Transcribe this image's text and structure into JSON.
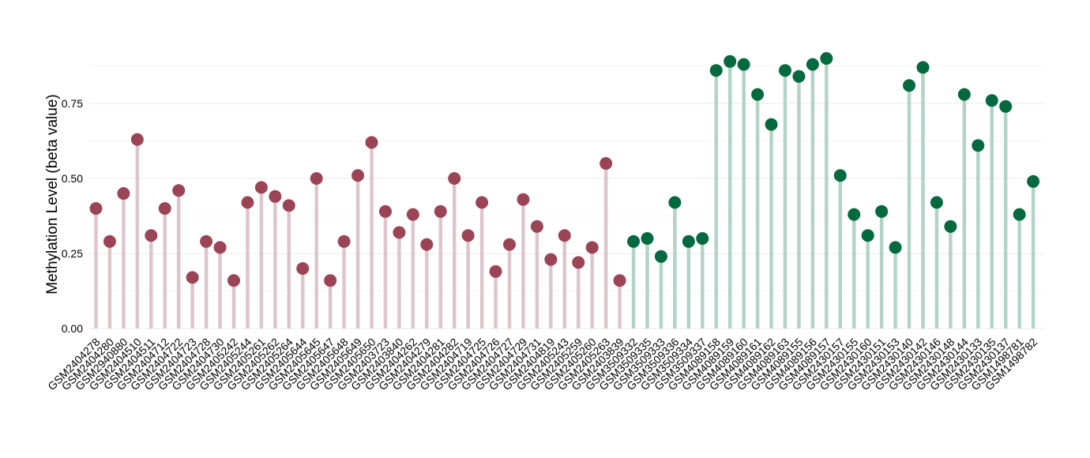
{
  "chart_data": {
    "type": "lollipop",
    "title": "",
    "xlabel": "",
    "ylabel": "Methylation Level (beta value)",
    "ylim": [
      0,
      0.95
    ],
    "yticks": [
      "0.00",
      "0.25",
      "0.50",
      "0.75"
    ],
    "ytick_values": [
      0,
      0.25,
      0.5,
      0.75
    ],
    "grid": true,
    "legend": "none",
    "colors": {
      "group1_point": "#9B4456",
      "group1_stem": "#DDC5CB",
      "group2_point": "#04693F",
      "group2_stem": "#B3D3C7",
      "grid": "#EBEBEB"
    },
    "series": [
      {
        "group": "group1",
        "categories": [
          "GSM2404278",
          "GSM2404280",
          "GSM2940880",
          "GSM2404510",
          "GSM2404511",
          "GSM2404712",
          "GSM2404722",
          "GSM2404723",
          "GSM2404728",
          "GSM2404730",
          "GSM2405242",
          "GSM2405244",
          "GSM2405261",
          "GSM2405262",
          "GSM2405264",
          "GSM2405644",
          "GSM2405645",
          "GSM2405647",
          "GSM2405648",
          "GSM2405649",
          "GSM2405650",
          "GSM2403723",
          "GSM2403840",
          "GSM2404262",
          "GSM2404279",
          "GSM2404281",
          "GSM2404282",
          "GSM2404719",
          "GSM2404725",
          "GSM2404726",
          "GSM2404727",
          "GSM2404729",
          "GSM2404731",
          "GSM2404819",
          "GSM2405243",
          "GSM2405259",
          "GSM2405260",
          "GSM2405263",
          "GSM2403839"
        ],
        "values": [
          0.4,
          0.29,
          0.45,
          0.63,
          0.31,
          0.4,
          0.46,
          0.17,
          0.29,
          0.27,
          0.16,
          0.42,
          0.47,
          0.44,
          0.41,
          0.2,
          0.5,
          0.16,
          0.29,
          0.51,
          0.62,
          0.39,
          0.32,
          0.38,
          0.28,
          0.39,
          0.5,
          0.31,
          0.42,
          0.19,
          0.28,
          0.43,
          0.34,
          0.23,
          0.31,
          0.22,
          0.27,
          0.55,
          0.16
        ]
      },
      {
        "group": "group2",
        "categories": [
          "GSM3509332",
          "GSM3509335",
          "GSM3509333",
          "GSM3509336",
          "GSM3509334",
          "GSM3509337",
          "GSM4089158",
          "GSM4089159",
          "GSM4089160",
          "GSM4089161",
          "GSM4089162",
          "GSM4089163",
          "GSM4089155",
          "GSM4089156",
          "GSM4089157",
          "GSM2430157",
          "GSM2430155",
          "GSM2430160",
          "GSM2430151",
          "GSM2430153",
          "GSM2430140",
          "GSM2430142",
          "GSM2430146",
          "GSM2430148",
          "GSM2430144",
          "GSM2430133",
          "GSM2430135",
          "GSM2430137",
          "GSM1498781",
          "GSM1498782"
        ],
        "values": [
          0.29,
          0.3,
          0.24,
          0.42,
          0.29,
          0.3,
          0.86,
          0.89,
          0.88,
          0.78,
          0.68,
          0.86,
          0.84,
          0.88,
          0.9,
          0.51,
          0.38,
          0.31,
          0.39,
          0.27,
          0.81,
          0.87,
          0.42,
          0.34,
          0.78,
          0.61,
          0.76,
          0.74,
          0.38,
          0.49
        ]
      }
    ]
  }
}
